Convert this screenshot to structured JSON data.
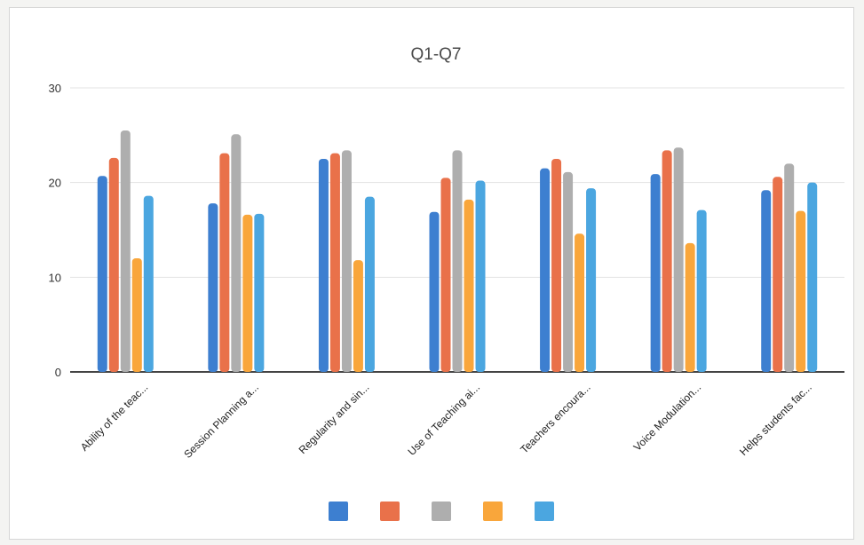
{
  "chart_data": {
    "type": "bar",
    "title": "Q1-Q7",
    "xlabel": "",
    "ylabel": "",
    "ylim": [
      0,
      30
    ],
    "yticks": [
      0,
      10,
      20,
      30
    ],
    "grid": true,
    "legend": "bottom",
    "categories": [
      "Ability of the teac...",
      "Session Planning a...",
      "Regularity and sin...",
      "Use of Teaching ai...",
      "Teachers encoura...",
      "Voice Modulation...",
      "Helps students fac..."
    ],
    "series": [
      {
        "color": "#3d7fd0",
        "values": [
          20.7,
          17.8,
          22.5,
          16.9,
          21.5,
          20.9,
          19.2
        ]
      },
      {
        "color": "#e9714a",
        "values": [
          22.6,
          23.1,
          23.1,
          20.5,
          22.5,
          23.4,
          20.6
        ]
      },
      {
        "color": "#aeaeae",
        "values": [
          25.5,
          25.1,
          23.4,
          23.4,
          21.1,
          23.7,
          22.0
        ]
      },
      {
        "color": "#f9a63b",
        "values": [
          12.0,
          16.6,
          11.8,
          18.2,
          14.6,
          13.6,
          17.0
        ]
      },
      {
        "color": "#4ba6e0",
        "values": [
          18.6,
          16.7,
          18.5,
          20.2,
          19.4,
          17.1,
          20.0
        ]
      }
    ]
  }
}
